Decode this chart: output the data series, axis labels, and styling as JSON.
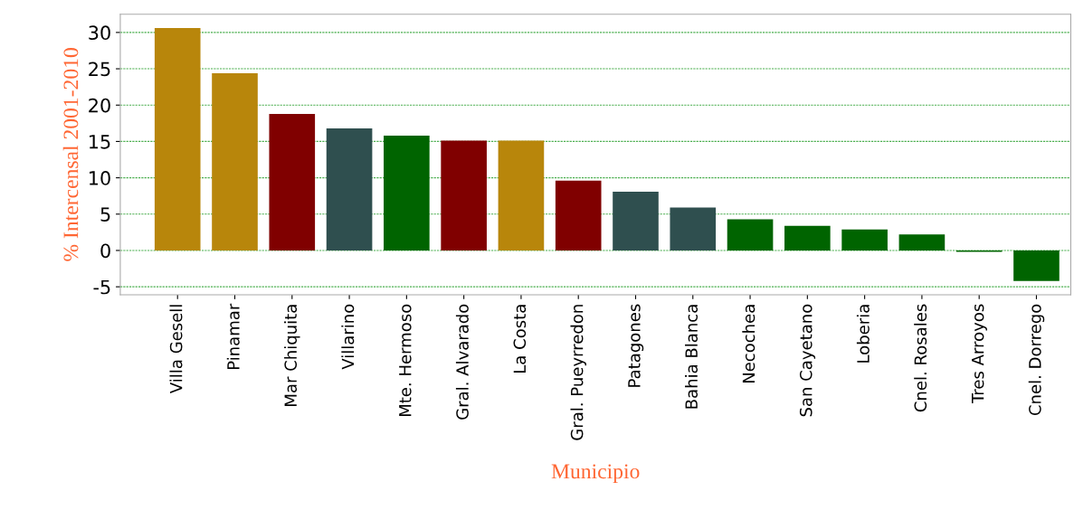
{
  "chart_data": {
    "type": "bar",
    "xlabel": "Municipio",
    "ylabel": "% Intercensal 2001-2010",
    "categories": [
      "Villa Gesell",
      "Pinamar",
      "Mar Chiquita",
      "Villarino",
      "Mte. Hermoso",
      "Gral. Alvarado",
      "La Costa",
      "Gral. Pueyrredon",
      "Patagones",
      "Bahia Blanca",
      "Necochea",
      "San Cayetano",
      "Loberia",
      "Cnel. Rosales",
      "Tres Arroyos",
      "Cnel. Dorrego"
    ],
    "values": [
      30.6,
      24.4,
      18.8,
      16.8,
      15.8,
      15.1,
      15.1,
      9.6,
      8.1,
      5.9,
      4.3,
      3.4,
      2.9,
      2.2,
      -0.2,
      -4.2
    ],
    "colors": [
      "#b8860b",
      "#b8860b",
      "#800000",
      "#2f4f4f",
      "#006400",
      "#800000",
      "#b8860b",
      "#800000",
      "#2f4f4f",
      "#2f4f4f",
      "#006400",
      "#006400",
      "#006400",
      "#006400",
      "#006400",
      "#006400"
    ],
    "ylim": [
      -6.1,
      32.5
    ],
    "yticks": [
      -5,
      0,
      5,
      10,
      15,
      20,
      25,
      30
    ],
    "grid": "y"
  }
}
